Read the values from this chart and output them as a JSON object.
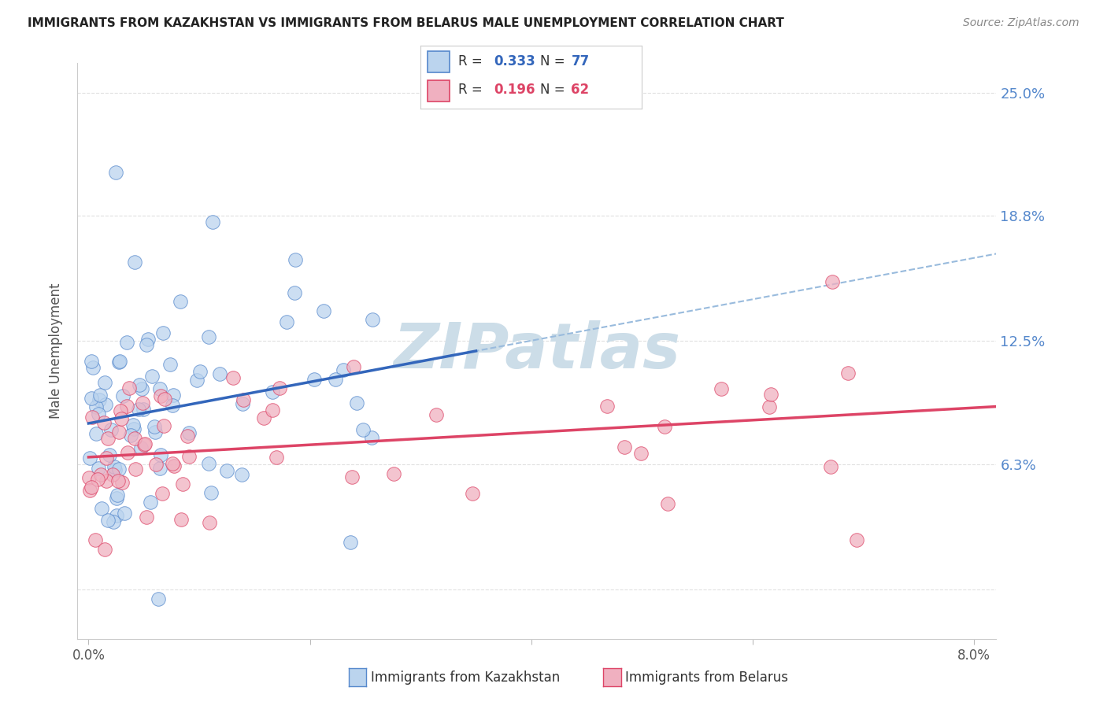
{
  "title": "IMMIGRANTS FROM KAZAKHSTAN VS IMMIGRANTS FROM BELARUS MALE UNEMPLOYMENT CORRELATION CHART",
  "source": "Source: ZipAtlas.com",
  "ylabel": "Male Unemployment",
  "ytick_vals": [
    0.0,
    0.063,
    0.125,
    0.188,
    0.25
  ],
  "ytick_labels": [
    "",
    "6.3%",
    "12.5%",
    "18.8%",
    "25.0%"
  ],
  "xlim": [
    -0.001,
    0.082
  ],
  "ylim": [
    -0.025,
    0.265
  ],
  "xmin_label": "0.0%",
  "xmax_label": "8.0%",
  "legend_r1": "0.333",
  "legend_n1": "77",
  "legend_r2": "0.196",
  "legend_n2": "62",
  "color_kaz_fill": "#bbd4ee",
  "color_kaz_edge": "#5588cc",
  "color_kaz_line": "#3366bb",
  "color_bel_fill": "#f0b0c0",
  "color_bel_edge": "#dd4466",
  "color_bel_line": "#dd4466",
  "color_dashed": "#99bbdd",
  "color_grid": "#dddddd",
  "color_ytick": "#5588cc",
  "color_title": "#222222",
  "color_source": "#888888",
  "watermark_text": "ZIPatlas",
  "watermark_color": "#ccdde8",
  "background_color": "#ffffff",
  "r_kaz": 0.333,
  "r_bel": 0.196,
  "n_kaz": 77,
  "n_bel": 62,
  "seed": 99
}
